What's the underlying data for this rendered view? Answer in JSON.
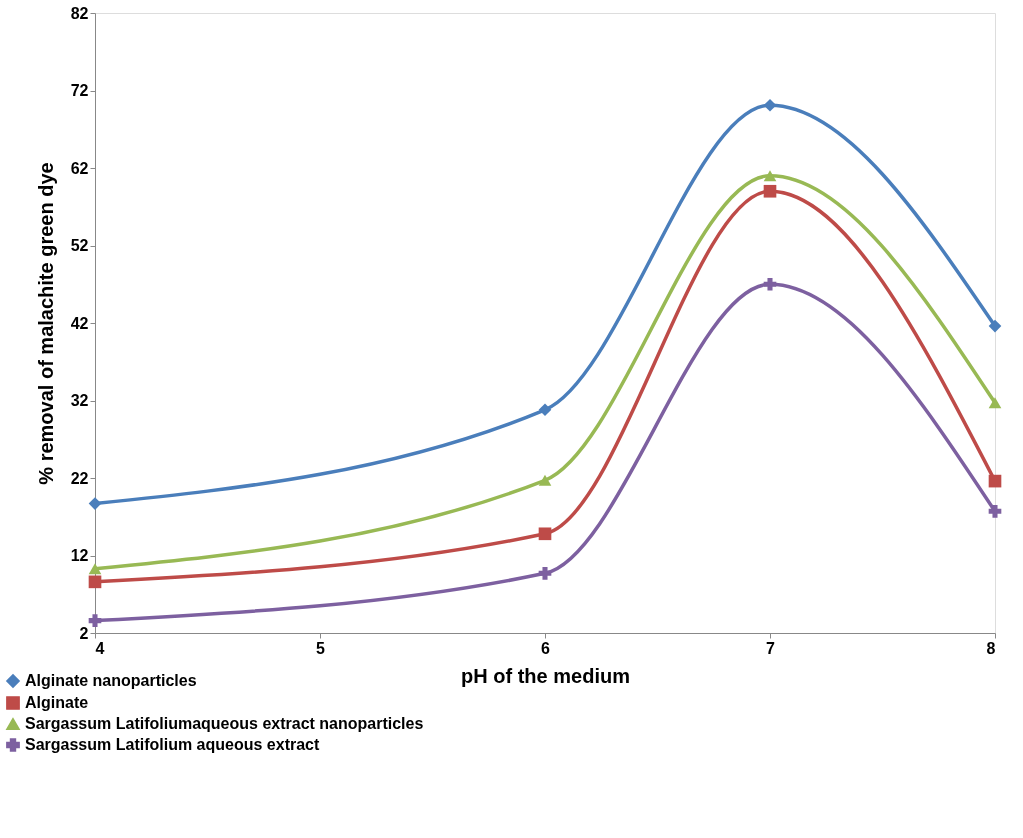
{
  "chart_data": {
    "type": "line",
    "xlabel": "pH of the medium",
    "ylabel": "% removal of malachite green dye",
    "x": [
      4,
      6,
      7,
      8
    ],
    "series": [
      {
        "name": "Alginate nanoparticles",
        "color": "#4a7ebb",
        "marker": "diamond",
        "values": [
          18.7,
          30.8,
          70.1,
          41.6
        ]
      },
      {
        "name": "Alginate",
        "color": "#be4b48",
        "marker": "square",
        "values": [
          8.6,
          14.8,
          59,
          21.6
        ]
      },
      {
        "name": "Sargassum Latifoliumaqueous extract nanoparticles",
        "color": "#98b954",
        "marker": "triangle",
        "values": [
          10.3,
          21.7,
          61,
          31.7
        ]
      },
      {
        "name": "Sargassum Latifolium aqueous extract",
        "color": "#7d60a0",
        "marker": "cross",
        "values": [
          3.6,
          9.7,
          47,
          17.7
        ]
      }
    ],
    "xlim": [
      4,
      8
    ],
    "xticks": [
      4,
      5,
      6,
      7,
      8
    ],
    "ylim": [
      2,
      82
    ],
    "yticks": [
      2,
      12,
      22,
      32,
      42,
      52,
      62,
      72,
      82
    ],
    "grid": false,
    "legend": "bottom left",
    "line_style": "solid"
  }
}
